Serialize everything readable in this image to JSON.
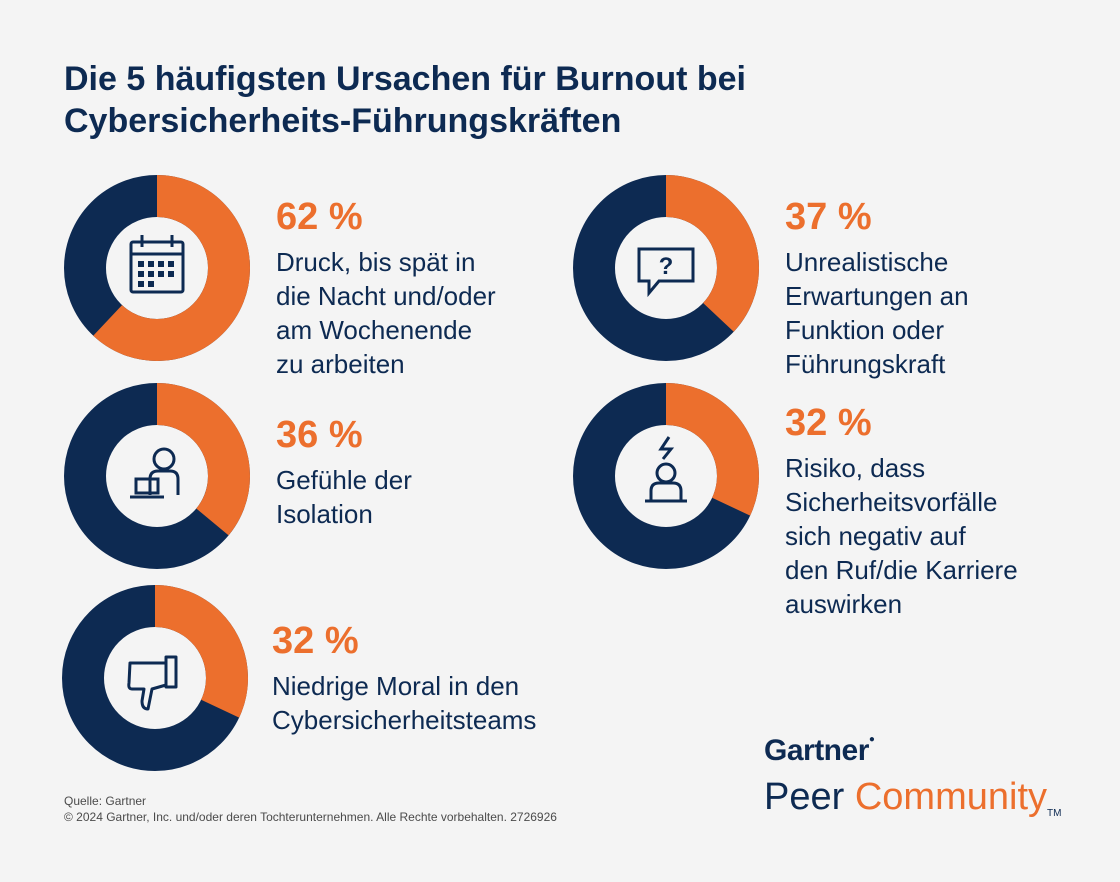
{
  "title": [
    "Die 5 häufigsten Ursachen für Burnout bei",
    "Cybersicherheits-Führungskräften"
  ],
  "colors": {
    "accent": "#ec6f2d",
    "navy": "#0d2a52",
    "background": "#f4f4f4"
  },
  "items": [
    {
      "pct_label": "62 %",
      "label_lines": [
        "Druck, bis spät in",
        "die Nacht und/oder",
        "am Wochenende",
        "zu arbeiten"
      ],
      "icon": "calendar-icon"
    },
    {
      "pct_label": "37 %",
      "label_lines": [
        "Unrealistische",
        "Erwartungen an",
        "Funktion oder",
        "Führungskraft"
      ],
      "icon": "question-bubble-icon"
    },
    {
      "pct_label": "36 %",
      "label_lines": [
        "Gefühle der",
        "Isolation"
      ],
      "icon": "person-at-laptop-icon"
    },
    {
      "pct_label": "32 %",
      "label_lines": [
        "Risiko, dass",
        "Sicherheitsvorfälle",
        "sich negativ auf",
        "den Ruf/die Karriere",
        "auswirken"
      ],
      "icon": "person-alert-icon"
    },
    {
      "pct_label": "32 %",
      "label_lines": [
        "Niedrige Moral in den",
        "Cybersicherheitsteams"
      ],
      "icon": "thumbs-down-icon"
    }
  ],
  "chart_data": {
    "type": "pie",
    "title": "Die 5 häufigsten Ursachen für Burnout bei Cybersicherheits-Führungskräften",
    "unit": "%",
    "categories": [
      "Druck, bis spät in die Nacht und/oder am Wochenende zu arbeiten",
      "Unrealistische Erwartungen an Funktion oder Führungskraft",
      "Gefühle der Isolation",
      "Risiko, dass Sicherheitsvorfälle sich negativ auf den Ruf/die Karriere auswirken",
      "Niedrige Moral in den Cybersicherheitsteams"
    ],
    "values": [
      62,
      37,
      36,
      32,
      32
    ]
  },
  "source": [
    "Quelle: Gartner",
    "© 2024 Gartner, Inc. und/oder deren Tochterunternehmen. Alle Rechte vorbehalten. 2726926"
  ],
  "logo": {
    "gartner": "Gartner",
    "peer": "Peer",
    "community": "Community",
    "tm": "TM"
  }
}
